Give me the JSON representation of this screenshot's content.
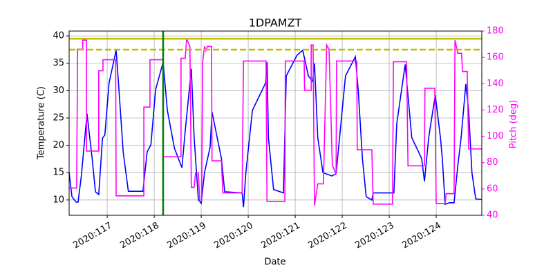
{
  "chart_data": {
    "type": "line",
    "title": "1DPAMZT",
    "xlabel": "Date",
    "ylabel": "Temperature (C)",
    "y2label": "Pitch (deg)",
    "y2color": "#ff00ff",
    "grid": true,
    "xlim": [
      116.19,
      124.97
    ],
    "xticks": [
      {
        "value": 117,
        "label": "2020:117"
      },
      {
        "value": 118,
        "label": "2020:118"
      },
      {
        "value": 119,
        "label": "2020:119"
      },
      {
        "value": 120,
        "label": "2020:120"
      },
      {
        "value": 121,
        "label": "2020:121"
      },
      {
        "value": 122,
        "label": "2020:122"
      },
      {
        "value": 123,
        "label": "2020:123"
      },
      {
        "value": 124,
        "label": "2020:124"
      }
    ],
    "ylim": [
      7.2,
      40.9
    ],
    "yticks": [
      10,
      15,
      20,
      25,
      30,
      35,
      40
    ],
    "y2lim": [
      40,
      180
    ],
    "y2ticks": [
      40,
      60,
      80,
      100,
      120,
      140,
      160,
      180
    ],
    "hlines": [
      {
        "value": 39.5,
        "color": "#bfbf00",
        "style": "solid"
      },
      {
        "value": 37.5,
        "color": "#bfbf00",
        "style": "dashed"
      }
    ],
    "vlines": [
      {
        "value": 118.19,
        "color": "#008000",
        "style": "solid"
      }
    ],
    "series": [
      {
        "color": "#0000ff",
        "axis": "y",
        "x": [
          116.19,
          116.25,
          116.34,
          116.38,
          116.45,
          116.57,
          116.68,
          116.75,
          116.82,
          116.9,
          116.95,
          117.04,
          117.19,
          117.25,
          117.34,
          117.45,
          117.76,
          117.85,
          117.93,
          118.03,
          118.19,
          118.28,
          118.43,
          118.59,
          118.66,
          118.79,
          118.85,
          118.94,
          119.0,
          119.07,
          119.19,
          119.23,
          119.34,
          119.43,
          119.5,
          119.87,
          119.9,
          119.95,
          120.09,
          120.37,
          120.4,
          120.43,
          120.54,
          120.75,
          120.81,
          121.04,
          121.16,
          121.28,
          121.37,
          121.41,
          121.48,
          121.59,
          121.78,
          121.87,
          122.07,
          122.28,
          122.34,
          122.43,
          122.51,
          122.63,
          122.66,
          123.1,
          123.16,
          123.34,
          123.48,
          123.69,
          123.75,
          123.84,
          123.98,
          124.09,
          124.13,
          124.19,
          124.28,
          124.38,
          124.46,
          124.53,
          124.63,
          124.69,
          124.76,
          124.84,
          124.97
        ],
        "values": [
          15.0,
          10.6,
          9.6,
          9.6,
          14.4,
          25.8,
          17.6,
          11.5,
          11.0,
          21.3,
          21.9,
          31.4,
          37.4,
          30.2,
          18.8,
          11.6,
          11.6,
          18.8,
          20.1,
          30.2,
          35.2,
          26.4,
          19.5,
          15.9,
          22.6,
          34.0,
          21.4,
          10.0,
          9.4,
          15.0,
          19.7,
          26.1,
          21.4,
          17.6,
          11.5,
          11.3,
          8.7,
          15.0,
          26.4,
          31.4,
          35.2,
          21.4,
          11.9,
          11.3,
          32.7,
          36.5,
          37.4,
          32.7,
          31.7,
          35.0,
          21.4,
          15.0,
          14.4,
          14.8,
          32.7,
          36.2,
          30.2,
          17.6,
          10.6,
          10.0,
          11.3,
          11.3,
          23.9,
          34.8,
          21.4,
          17.6,
          13.4,
          21.4,
          29.2,
          21.4,
          17.6,
          9.2,
          9.5,
          9.5,
          16.3,
          21.4,
          31.2,
          26.4,
          15.0,
          10.2,
          10.1
        ]
      },
      {
        "color": "#ff00ff",
        "axis": "y2",
        "x": [
          116.19,
          116.35,
          116.37,
          116.48,
          116.48,
          116.56,
          116.56,
          116.82,
          116.82,
          116.91,
          116.91,
          117.18,
          117.19,
          117.78,
          117.78,
          117.91,
          117.91,
          118.19,
          118.19,
          118.57,
          118.57,
          118.66,
          118.69,
          118.76,
          118.79,
          118.85,
          118.88,
          118.94,
          118.97,
          119.01,
          119.03,
          119.07,
          119.1,
          119.13,
          119.22,
          119.23,
          119.43,
          119.46,
          119.87,
          119.9,
          120.38,
          120.4,
          120.78,
          120.79,
          121.19,
          121.2,
          121.34,
          121.34,
          121.38,
          121.41,
          121.48,
          121.6,
          121.67,
          121.72,
          121.79,
          121.87,
          121.88,
          122.31,
          122.32,
          122.63,
          122.66,
          123.07,
          123.09,
          123.37,
          123.4,
          123.75,
          123.76,
          123.97,
          124.0,
          124.19,
          124.21,
          124.38,
          124.4,
          124.46,
          124.54,
          124.56,
          124.66,
          124.69,
          124.97
        ],
        "values": [
          60.7,
          60.7,
          166.2,
          166.2,
          173.1,
          173.1,
          88.8,
          88.8,
          149.8,
          149.8,
          158.2,
          158.2,
          54.8,
          54.8,
          122.2,
          122.2,
          158.2,
          158.2,
          84.5,
          84.5,
          159.3,
          159.3,
          174.2,
          168.3,
          61.2,
          61.2,
          72.3,
          72.3,
          50.6,
          50.6,
          156.1,
          168.3,
          165.1,
          168.3,
          168.3,
          81.4,
          81.4,
          57.0,
          57.0,
          157.2,
          157.2,
          50.6,
          50.6,
          157.2,
          157.2,
          134.9,
          134.9,
          169.4,
          169.4,
          47.4,
          63.9,
          63.9,
          169.4,
          166.2,
          78.2,
          71.3,
          157.2,
          157.2,
          89.8,
          89.8,
          48.5,
          48.5,
          156.7,
          156.7,
          77.6,
          77.6,
          136.5,
          136.5,
          49.0,
          49.0,
          56.4,
          56.4,
          173.1,
          163.1,
          163.1,
          149.3,
          149.3,
          90.4,
          90.4
        ]
      }
    ]
  }
}
